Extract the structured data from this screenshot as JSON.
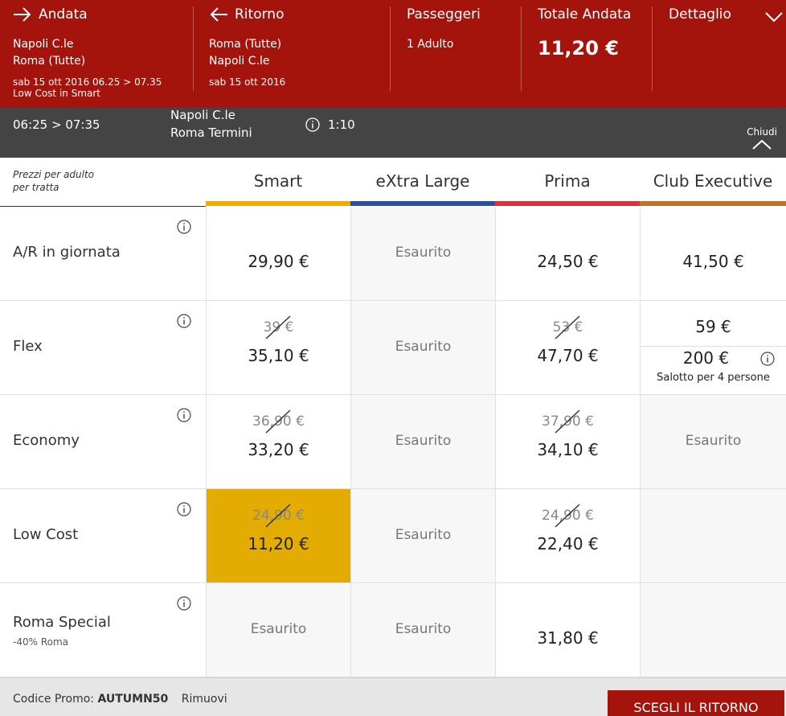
{
  "colors": {
    "header_bg": "#a5130d",
    "trainbar_bg": "#444444",
    "smart": "#f2a900",
    "extra_large": "#2c4f9e",
    "prima": "#d8343c",
    "club_executive": "#c0722a",
    "selected_cell": "#e4ac00"
  },
  "header": {
    "andata": {
      "title": "Andata",
      "from": "Napoli C.le",
      "to": "Roma (Tutte)",
      "datetime": "sab 15 ott 2016 06.25 > 07.35",
      "offer": "Low Cost in Smart"
    },
    "ritorno": {
      "title": "Ritorno",
      "from": "Roma (Tutte)",
      "to": "Napoli C.le",
      "date": "sab 15 ott 2016"
    },
    "passeggeri": {
      "title": "Passeggeri",
      "value": "1 Adulto"
    },
    "totale": {
      "title": "Totale Andata",
      "value": "11,20 €"
    },
    "dettaglio": {
      "title": "Dettaglio",
      "icon": "chevron-down-icon"
    }
  },
  "train": {
    "time": "06:25 > 07:35",
    "from": "Napoli C.le",
    "to": "Roma Termini",
    "duration": "1:10",
    "close": "Chiudi"
  },
  "table": {
    "corner": [
      "Prezzi per adulto",
      "per tratta"
    ],
    "columns": [
      "Smart",
      "eXtra Large",
      "Prima",
      "Club Executive"
    ],
    "sold_out": "Esaurito",
    "rows": [
      {
        "label": "A/R in giornata",
        "sub": ""
      },
      {
        "label": "Flex",
        "sub": ""
      },
      {
        "label": "Economy",
        "sub": ""
      },
      {
        "label": "Low Cost",
        "sub": ""
      },
      {
        "label": "Roma Special",
        "sub": "-40% Roma"
      }
    ],
    "prices": {
      "ar_smart": "29,90 €",
      "ar_prima": "24,50 €",
      "ar_club": "41,50 €",
      "flex_smart_old": "39 €",
      "flex_smart": "35,10 €",
      "flex_prima_old": "53 €",
      "flex_prima": "47,70 €",
      "flex_club": "59 €",
      "flex_club_salotto": "200 €",
      "flex_club_salotto_note": "Salotto per 4 persone",
      "eco_smart_old": "36,90 €",
      "eco_smart": "33,20 €",
      "eco_prima_old": "37,90 €",
      "eco_prima": "34,10 €",
      "low_smart_old": "24,90 €",
      "low_smart": "11,20 €",
      "low_prima_old": "24,90 €",
      "low_prima": "22,40 €",
      "special_prima": "31,80 €"
    }
  },
  "footer": {
    "promo_label": "Codice Promo:",
    "promo_code": "AUTUMN50",
    "remove": "Rimuovi",
    "cta": "SCEGLI IL RITORNO"
  }
}
